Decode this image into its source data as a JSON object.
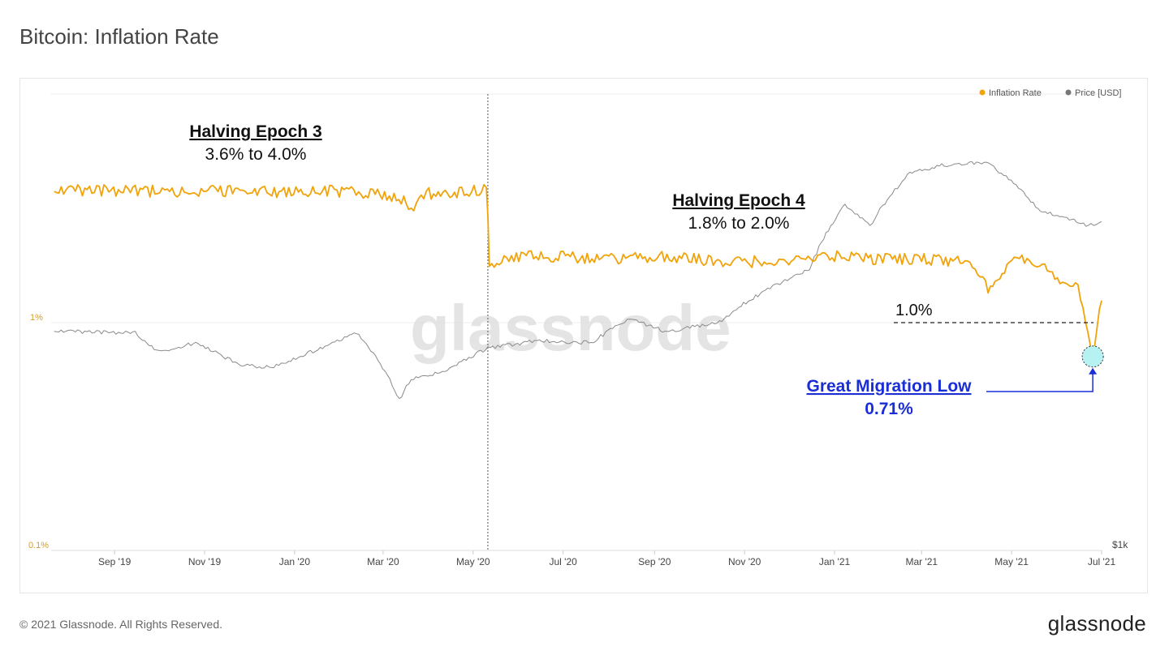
{
  "page": {
    "title": "Bitcoin: Inflation Rate",
    "copyright": "© 2021 Glassnode. All Rights Reserved.",
    "logo": "glassnode"
  },
  "chart_data": {
    "type": "line",
    "watermark": "glassnode",
    "legend": [
      {
        "label": "Inflation Rate",
        "color": "#f0a30a"
      },
      {
        "label": "Price [USD]",
        "color": "#8a8a8a"
      }
    ],
    "legend_position": "top-right",
    "y_left": {
      "scale": "log",
      "ticks": [
        "1%",
        "0.1%"
      ],
      "tick_color": "#d4a030"
    },
    "y_right": {
      "scale": "log",
      "ticks": [
        "$1k"
      ]
    },
    "x_ticks": [
      "Sep '19",
      "Nov '19",
      "Jan '20",
      "Mar '20",
      "May '20",
      "Jul '20",
      "Sep '20",
      "Nov '20",
      "Jan '21",
      "Mar '21",
      "May '21",
      "Jul '21"
    ],
    "x_range": [
      "2019-07-20",
      "2021-07-01"
    ],
    "halving_date": "2020-05-11",
    "series": [
      {
        "name": "Inflation Rate",
        "color": "#f0a30a",
        "points": [
          [
            "2019-07-22",
            3.9
          ],
          [
            "2019-08-15",
            3.8
          ],
          [
            "2019-09-15",
            3.8
          ],
          [
            "2019-10-15",
            3.75
          ],
          [
            "2019-11-15",
            3.8
          ],
          [
            "2019-12-15",
            3.75
          ],
          [
            "2020-01-15",
            3.8
          ],
          [
            "2020-02-15",
            3.75
          ],
          [
            "2020-03-10",
            3.6
          ],
          [
            "2020-03-20",
            3.2
          ],
          [
            "2020-04-01",
            3.7
          ],
          [
            "2020-04-20",
            3.75
          ],
          [
            "2020-05-10",
            3.85
          ],
          [
            "2020-05-12",
            1.8
          ],
          [
            "2020-06-01",
            1.95
          ],
          [
            "2020-07-01",
            1.95
          ],
          [
            "2020-08-01",
            1.9
          ],
          [
            "2020-09-01",
            1.95
          ],
          [
            "2020-10-01",
            1.9
          ],
          [
            "2020-11-01",
            1.85
          ],
          [
            "2020-12-01",
            1.9
          ],
          [
            "2021-01-01",
            1.95
          ],
          [
            "2021-02-01",
            1.9
          ],
          [
            "2021-03-01",
            1.9
          ],
          [
            "2021-04-01",
            1.85
          ],
          [
            "2021-04-15",
            1.4
          ],
          [
            "2021-05-01",
            1.9
          ],
          [
            "2021-05-15",
            1.85
          ],
          [
            "2021-06-01",
            1.6
          ],
          [
            "2021-06-15",
            1.4
          ],
          [
            "2021-06-25",
            0.71
          ],
          [
            "2021-07-01",
            1.25
          ]
        ]
      },
      {
        "name": "Price [USD]",
        "color": "#8a8a8a",
        "points": [
          [
            "2019-07-22",
            10500
          ],
          [
            "2019-08-15",
            10300
          ],
          [
            "2019-09-15",
            10200
          ],
          [
            "2019-10-01",
            8300
          ],
          [
            "2019-10-26",
            9200
          ],
          [
            "2019-11-25",
            7200
          ],
          [
            "2019-12-18",
            7100
          ],
          [
            "2020-01-20",
            8700
          ],
          [
            "2020-02-12",
            10200
          ],
          [
            "2020-03-12",
            5000
          ],
          [
            "2020-03-20",
            6200
          ],
          [
            "2020-04-15",
            6900
          ],
          [
            "2020-05-11",
            8700
          ],
          [
            "2020-06-15",
            9400
          ],
          [
            "2020-07-20",
            9200
          ],
          [
            "2020-08-15",
            11800
          ],
          [
            "2020-09-10",
            10300
          ],
          [
            "2020-10-15",
            11500
          ],
          [
            "2020-11-15",
            16000
          ],
          [
            "2020-12-15",
            20000
          ],
          [
            "2021-01-08",
            40000
          ],
          [
            "2021-01-25",
            32000
          ],
          [
            "2021-02-21",
            56000
          ],
          [
            "2021-03-13",
            61000
          ],
          [
            "2021-04-14",
            63500
          ],
          [
            "2021-05-19",
            38000
          ],
          [
            "2021-06-01",
            36000
          ],
          [
            "2021-06-22",
            32000
          ],
          [
            "2021-07-01",
            33500
          ]
        ]
      }
    ]
  },
  "annotations": {
    "epoch3_title": "Halving Epoch 3",
    "epoch3_range": "3.6% to 4.0%",
    "epoch4_title": "Halving Epoch 4",
    "epoch4_range": "1.8% to 2.0%",
    "level_label": "1.0%",
    "level_value": 1.0,
    "low_title": "Great Migration Low",
    "low_value": "0.71%"
  }
}
